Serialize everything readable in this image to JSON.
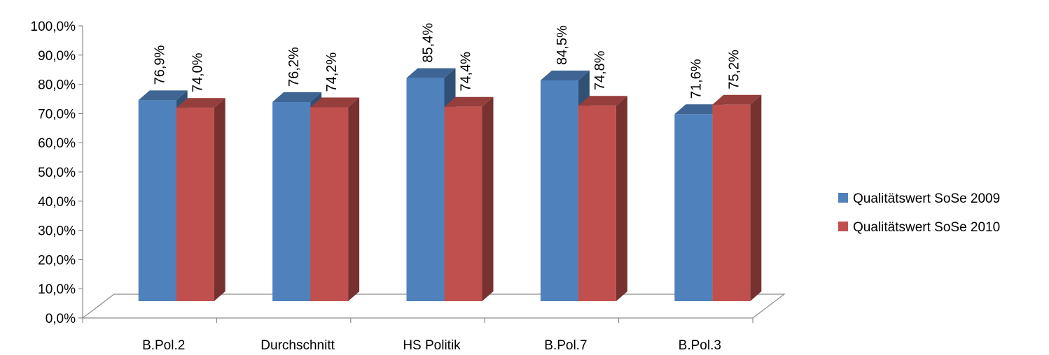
{
  "chart_data": {
    "type": "bar",
    "title": "",
    "xlabel": "",
    "ylabel": "",
    "ylim": [
      0,
      100
    ],
    "y_ticks": [
      "0,0%",
      "10,0%",
      "20,0%",
      "30,0%",
      "40,0%",
      "50,0%",
      "60,0%",
      "70,0%",
      "80,0%",
      "90,0%",
      "100,0%"
    ],
    "categories": [
      "B.Pol.2",
      "Durchschnitt",
      "HS Politik",
      "B.Pol.7",
      "B.Pol.3"
    ],
    "series": [
      {
        "name": "Qualitätswert SoSe 2009",
        "values": [
          76.9,
          76.2,
          85.4,
          84.5,
          71.6
        ],
        "labels": [
          "76,9%",
          "76,2%",
          "85,4%",
          "84,5%",
          "71,6%"
        ],
        "color": "#4F81BD"
      },
      {
        "name": "Qualitätswert SoSe 2010",
        "values": [
          74.0,
          74.2,
          74.4,
          74.8,
          75.2
        ],
        "labels": [
          "74,0%",
          "74,2%",
          "74,4%",
          "74,8%",
          "75,2%"
        ],
        "color": "#C0504D"
      }
    ],
    "style": "3d-clustered-column",
    "grid": false,
    "legend_position": "right"
  }
}
